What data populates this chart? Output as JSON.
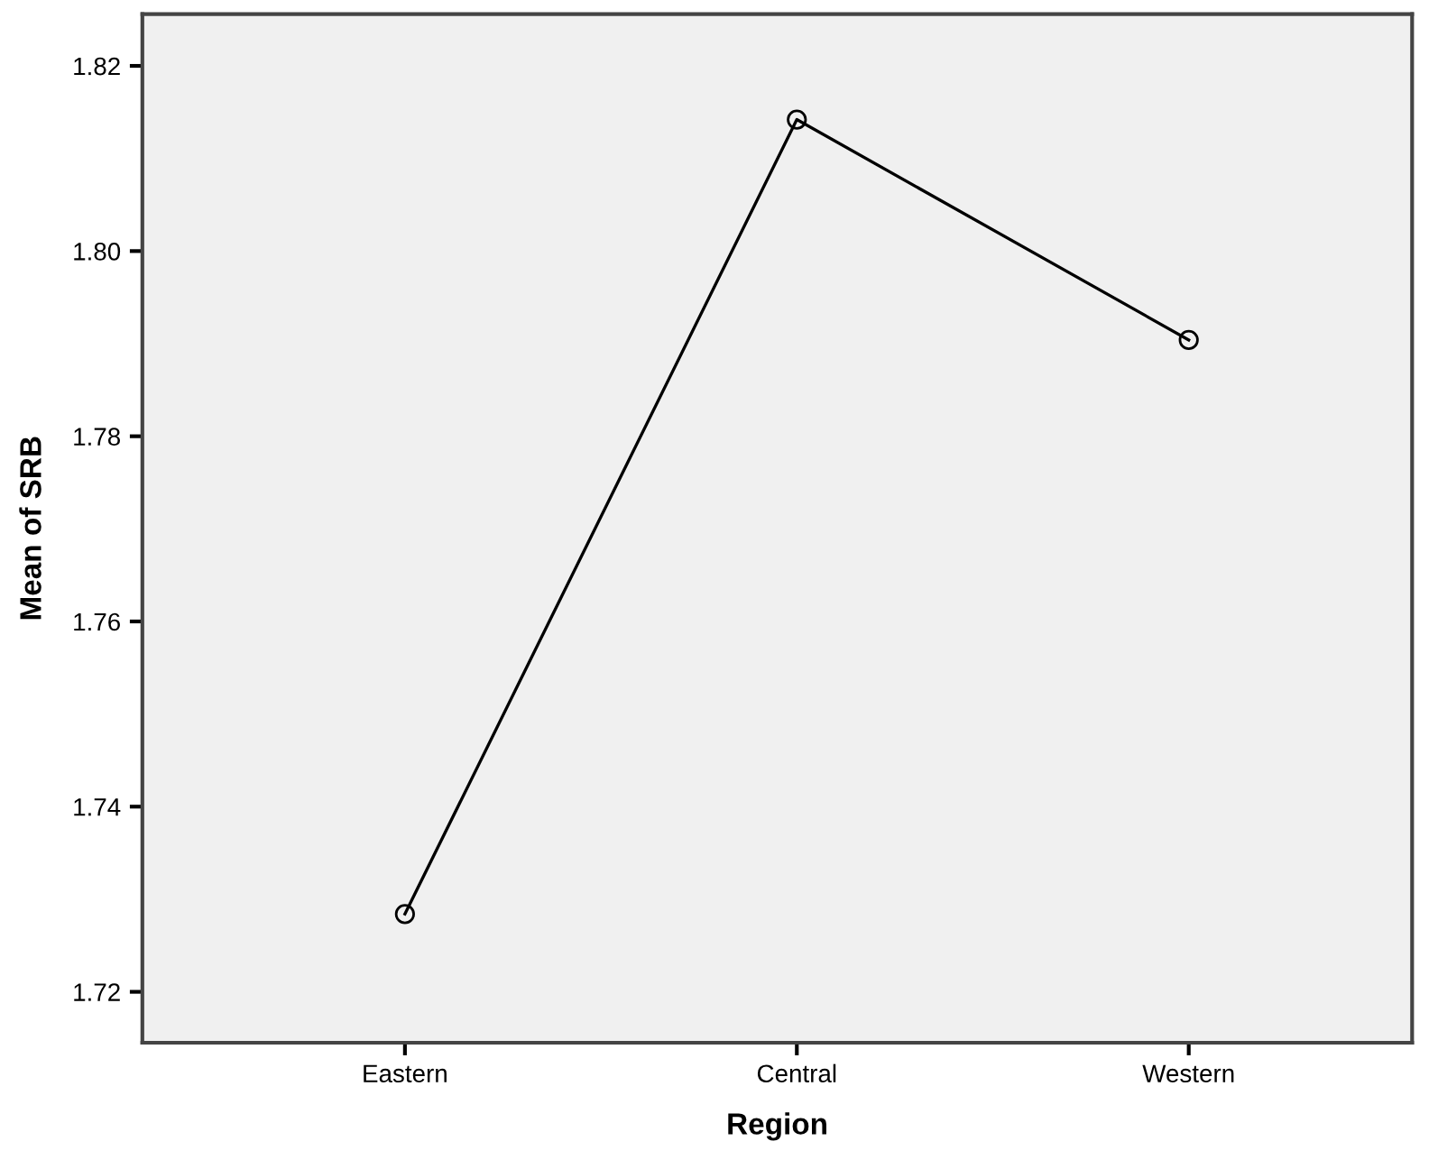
{
  "chart_data": {
    "type": "line",
    "xlabel": "Region",
    "ylabel": "Mean of SRB",
    "categories": [
      "Eastern",
      "Central",
      "Western"
    ],
    "series": [
      {
        "color": "#000000",
        "values": [
          1.7284,
          1.8142,
          1.7904
        ]
      }
    ],
    "ylim": [
      1.7145,
      1.8256
    ],
    "yticks": [
      1.72,
      1.74,
      1.76,
      1.78,
      {
        "value": 1.8,
        "label": "1.80"
      },
      1.82
    ],
    "marker": "circle",
    "line_style": "solid",
    "grid": false,
    "legend": false
  }
}
